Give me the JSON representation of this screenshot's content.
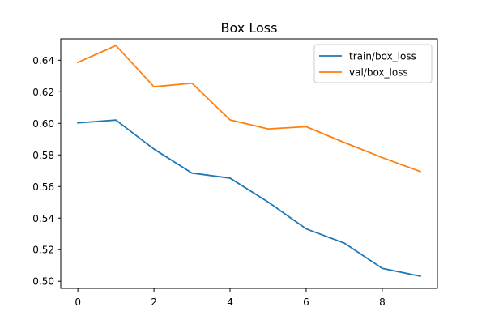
{
  "chart_data": {
    "type": "line",
    "title": "Box Loss",
    "xlabel": "",
    "ylabel": "",
    "x": [
      0,
      1,
      2,
      3,
      4,
      5,
      6,
      7,
      8,
      9
    ],
    "xlim": [
      -0.45,
      9.45
    ],
    "ylim": [
      0.4955,
      0.6535
    ],
    "xticks": [
      0,
      2,
      4,
      6,
      8
    ],
    "yticks": [
      0.5,
      0.52,
      0.54,
      0.56,
      0.58,
      0.6,
      0.62,
      0.64
    ],
    "xtick_labels": [
      "0",
      "2",
      "4",
      "6",
      "8"
    ],
    "ytick_labels": [
      "0.50",
      "0.52",
      "0.54",
      "0.56",
      "0.58",
      "0.60",
      "0.62",
      "0.64"
    ],
    "grid": false,
    "legend_position": "top-right",
    "series": [
      {
        "name": "train/box_loss",
        "color": "#1f77b4",
        "values": [
          0.6003,
          0.6021,
          0.5837,
          0.5685,
          0.5653,
          0.5502,
          0.5332,
          0.5242,
          0.5082,
          0.5032
        ]
      },
      {
        "name": "val/box_loss",
        "color": "#ff7f0e",
        "values": [
          0.6386,
          0.6493,
          0.6232,
          0.6254,
          0.6022,
          0.5965,
          0.5979,
          0.5879,
          0.5783,
          0.5695
        ]
      }
    ]
  }
}
